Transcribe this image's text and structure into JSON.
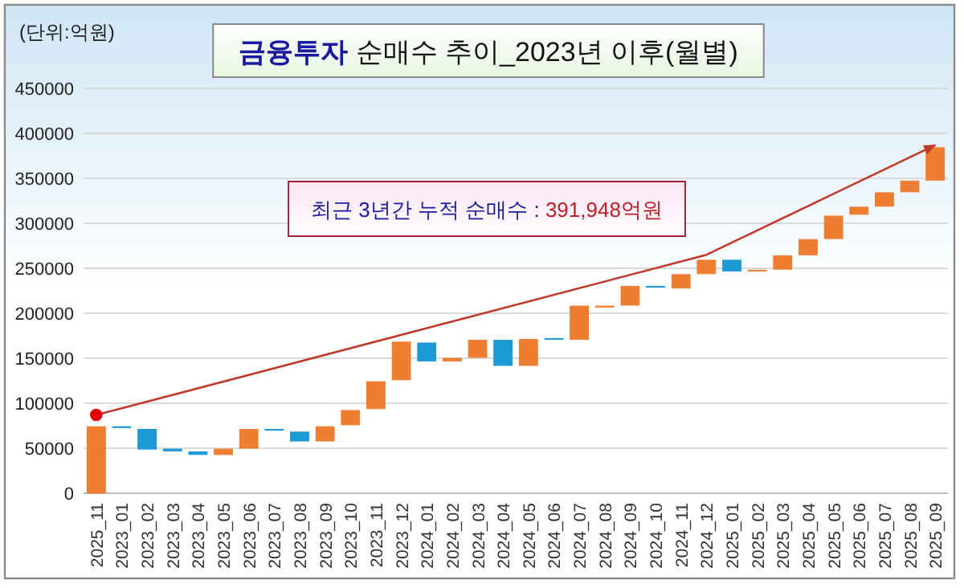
{
  "chart_data": {
    "type": "bar",
    "title": "**금융투자** 순매수 추이_2023년 이후(월별)",
    "ylabel": "(단위:억원)",
    "annotations": [
      "최근 3년간 누적 순매수 : 391,948억원"
    ],
    "categories": [
      "2025_11",
      "2023_01",
      "2023_02",
      "2023_03",
      "2023_04",
      "2023_05",
      "2023_06",
      "2023_07",
      "2023_08",
      "2023_09",
      "2023_10",
      "2023_11",
      "2023_12",
      "2024_01",
      "2024_02",
      "2024_03",
      "2024_04",
      "2024_05",
      "2024_06",
      "2024_07",
      "2024_08",
      "2024_09",
      "2024_10",
      "2024_11",
      "2024_12",
      "2025_01",
      "2025_02",
      "2025_03",
      "2025_04",
      "2025_05",
      "2025_06",
      "2025_07",
      "2025_08",
      "2025_09"
    ],
    "series": [
      {
        "type": "bar",
        "base": [
          0,
          74000,
          71000,
          49000,
          46000,
          43000,
          50000,
          71000,
          68000,
          58000,
          76000,
          94000,
          126000,
          167000,
          147000,
          151000,
          170000,
          142000,
          172000,
          171000,
          207000,
          209000,
          230000,
          228000,
          244000,
          259000,
          247000,
          249000,
          265000,
          283000,
          310000,
          319000,
          335000,
          348000
        ],
        "values": [
          74000,
          -1000,
          -22000,
          -2000,
          -3000,
          6000,
          21000,
          -1000,
          -10000,
          16000,
          16000,
          30000,
          42000,
          -20000,
          3000,
          19000,
          -28000,
          29000,
          -1000,
          37000,
          1000,
          21000,
          -1000,
          15000,
          15000,
          -12000,
          1000,
          15000,
          17000,
          25000,
          8000,
          15000,
          12000,
          36000
        ],
        "colors": [
          "#ed7d31",
          "#1b9ad6",
          "#1b9ad6",
          "#1b9ad6",
          "#1b9ad6",
          "#ed7d31",
          "#ed7d31",
          "#1b9ad6",
          "#1b9ad6",
          "#ed7d31",
          "#ed7d31",
          "#ed7d31",
          "#ed7d31",
          "#1b9ad6",
          "#ed7d31",
          "#ed7d31",
          "#1b9ad6",
          "#ed7d31",
          "#1b9ad6",
          "#ed7d31",
          "#ed7d31",
          "#ed7d31",
          "#1b9ad6",
          "#ed7d31",
          "#ed7d31",
          "#1b9ad6",
          "#ed7d31",
          "#ed7d31",
          "#ed7d31",
          "#ed7d31",
          "#ed7d31",
          "#ed7d31",
          "#ed7d31",
          "#ed7d31"
        ]
      },
      {
        "type": "line",
        "x": [
          "2025_11",
          "2024_12",
          "2025_09"
        ],
        "values": [
          87000,
          265000,
          387000
        ],
        "color": "#c0392b"
      }
    ],
    "ylim": [
      0,
      450000
    ],
    "yticks": [
      0,
      50000,
      100000,
      150000,
      200000,
      250000,
      300000,
      350000,
      400000,
      450000
    ],
    "grid": "y"
  }
}
